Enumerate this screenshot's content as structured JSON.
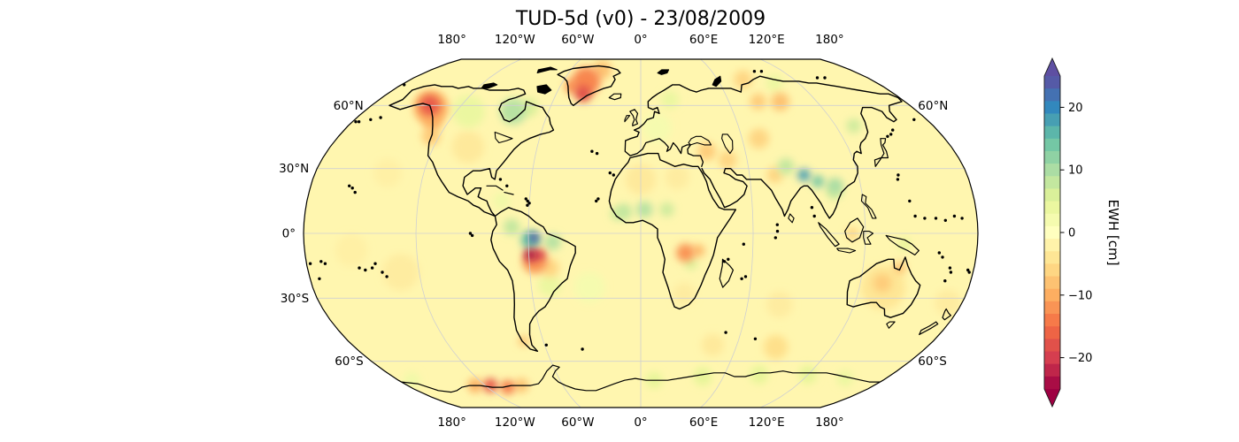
{
  "title": "TUD-5d (v0) - 23/08/2009",
  "axes": {
    "top_labels": [
      "180°",
      "120°W",
      "60°W",
      "0°",
      "60°E",
      "120°E",
      "180°"
    ],
    "bottom_labels": [
      "180°",
      "120°W",
      "60°W",
      "0°",
      "60°E",
      "120°E",
      "180°"
    ],
    "left_labels": [
      "60°N",
      "30°N",
      "0°",
      "30°S",
      "60°S"
    ],
    "right_labels": [
      "60°N",
      "60°S"
    ]
  },
  "colorbar": {
    "label": "EWH [cm]",
    "ticks": [
      {
        "label": "20",
        "value": 20
      },
      {
        "label": "10",
        "value": 10
      },
      {
        "label": "0",
        "value": 0
      },
      {
        "label": "−10",
        "value": -10
      },
      {
        "label": "−20",
        "value": -20
      }
    ],
    "vmin": -25,
    "vmax": 25,
    "n_segments": 25,
    "extend": "both",
    "colormap": {
      "name": "Spectral",
      "values": [
        -25,
        -20,
        -15,
        -10,
        -5,
        0,
        5,
        10,
        15,
        20,
        25
      ],
      "colors": [
        "#9e0142",
        "#d53e4f",
        "#f46d43",
        "#fdae61",
        "#fee08b",
        "#ffffbf",
        "#e6f598",
        "#abdda4",
        "#66c2a5",
        "#3288bd",
        "#5e4fa2"
      ]
    }
  },
  "chart_data": {
    "type": "heatmap",
    "title": "TUD-5d (v0) - 23/08/2009",
    "projection": "Robinson",
    "value_label": "EWH [cm]",
    "units": "cm",
    "vmin": -25,
    "vmax": 25,
    "background_value": -1.5,
    "graticule": {
      "lat_step": 30,
      "lon_step": 60
    },
    "anomalies": [
      {
        "region": "gulf-of-alaska-core",
        "lon": -141,
        "lat": 60,
        "value": -17,
        "r": 10
      },
      {
        "region": "gulf-of-alaska-halo",
        "lon": -139,
        "lat": 59,
        "value": -10,
        "r": 17
      },
      {
        "region": "british-columbia-coast",
        "lon": -130,
        "lat": 52,
        "value": -9,
        "r": 9
      },
      {
        "region": "pacific-northwest",
        "lon": -125,
        "lat": 45,
        "value": -7,
        "r": 9
      },
      {
        "region": "us-interior",
        "lon": -100,
        "lat": 40,
        "value": -3.5,
        "r": 16
      },
      {
        "region": "canada-interior",
        "lon": -112,
        "lat": 57,
        "value": 4,
        "r": 16
      },
      {
        "region": "hudson-bay",
        "lon": -83,
        "lat": 57,
        "value": 9,
        "r": 13
      },
      {
        "region": "hudson-bay-east",
        "lon": -74,
        "lat": 59,
        "value": 6,
        "r": 9
      },
      {
        "region": "greenland-interior",
        "lon": -42,
        "lat": 73,
        "value": -13,
        "r": 14
      },
      {
        "region": "greenland-southeast",
        "lon": -41,
        "lat": 66,
        "value": -18,
        "r": 8
      },
      {
        "region": "greenland-west",
        "lon": -51,
        "lat": 70,
        "value": -12,
        "r": 7
      },
      {
        "region": "greenland-north",
        "lon": -33,
        "lat": 80,
        "value": -8,
        "r": 9
      },
      {
        "region": "amazon-north-core",
        "lon": -57,
        "lat": -2,
        "value": 24,
        "r": 5
      },
      {
        "region": "amazon-north",
        "lon": -59,
        "lat": -3,
        "value": 15,
        "r": 9
      },
      {
        "region": "amazon-northeast-tail",
        "lon": -47,
        "lat": -4,
        "value": 9,
        "r": 8
      },
      {
        "region": "colombia-orinoco",
        "lon": -69,
        "lat": 3,
        "value": 8,
        "r": 8
      },
      {
        "region": "amazon-south-core",
        "lon": -59,
        "lat": -10,
        "value": -24,
        "r": 6
      },
      {
        "region": "amazon-south-core2",
        "lon": -54,
        "lat": -10,
        "value": -20,
        "r": 5
      },
      {
        "region": "amazon-south-halo",
        "lon": -57,
        "lat": -13,
        "value": -12,
        "r": 12
      },
      {
        "region": "brazil-cerrado",
        "lon": -49,
        "lat": -16,
        "value": -6,
        "r": 9
      },
      {
        "region": "southeast-brazil",
        "lon": -50,
        "lat": -24,
        "value": 4,
        "r": 11
      },
      {
        "region": "patagonia-icefields",
        "lon": -72,
        "lat": -50,
        "value": -8,
        "r": 5
      },
      {
        "region": "caribbean",
        "lon": -75,
        "lat": 15,
        "value": 3,
        "r": 8
      },
      {
        "region": "sahel-west",
        "lon": -9,
        "lat": 10,
        "value": 8,
        "r": 8
      },
      {
        "region": "sahel-central",
        "lon": 2,
        "lat": 11,
        "value": 9,
        "r": 8
      },
      {
        "region": "sahel-east",
        "lon": 14,
        "lat": 11,
        "value": 7,
        "r": 7
      },
      {
        "region": "guinea-coast",
        "lon": -13,
        "lat": 9,
        "value": 7,
        "r": 6
      },
      {
        "region": "sahara",
        "lon": 0,
        "lat": 25,
        "value": -3.5,
        "r": 15
      },
      {
        "region": "libya-egypt",
        "lon": 20,
        "lat": 26,
        "value": -3,
        "r": 12
      },
      {
        "region": "congo-angola",
        "lon": 24,
        "lat": -9,
        "value": -12,
        "r": 9
      },
      {
        "region": "congo-east",
        "lon": 31,
        "lat": -8,
        "value": -9,
        "r": 6
      },
      {
        "region": "zambia",
        "lon": 27,
        "lat": -14,
        "value": 6,
        "r": 6
      },
      {
        "region": "southern-africa",
        "lon": 24,
        "lat": -28,
        "value": -3,
        "r": 11
      },
      {
        "region": "europe",
        "lon": 10,
        "lat": 49,
        "value": 2,
        "r": 14
      },
      {
        "region": "scandinavia",
        "lon": 20,
        "lat": 63,
        "value": 4,
        "r": 9
      },
      {
        "region": "anatolia",
        "lon": 38,
        "lat": 38,
        "value": -7,
        "r": 9
      },
      {
        "region": "iran",
        "lon": 49,
        "lat": 34,
        "value": -6,
        "r": 9
      },
      {
        "region": "kazakhstan",
        "lon": 70,
        "lat": 44,
        "value": -6,
        "r": 10
      },
      {
        "region": "west-siberia",
        "lon": 80,
        "lat": 62,
        "value": -7,
        "r": 8
      },
      {
        "region": "central-siberia",
        "lon": 95,
        "lat": 62,
        "value": -8,
        "r": 9
      },
      {
        "region": "kara-region",
        "lon": 80,
        "lat": 74,
        "value": -6,
        "r": 9
      },
      {
        "region": "taymyr",
        "lon": 102,
        "lat": 72,
        "value": 4,
        "r": 8
      },
      {
        "region": "north-india",
        "lon": 74,
        "lat": 27,
        "value": -6,
        "r": 8
      },
      {
        "region": "himalaya-core",
        "lon": 90,
        "lat": 27,
        "value": 18,
        "r": 6
      },
      {
        "region": "himalaya-east-core",
        "lon": 97,
        "lat": 24,
        "value": 14,
        "r": 6
      },
      {
        "region": "tibet-west",
        "lon": 81,
        "lat": 31,
        "value": 8,
        "r": 8
      },
      {
        "region": "southeast-asia-band",
        "lon": 106,
        "lat": 22,
        "value": 10,
        "r": 8
      },
      {
        "region": "indochina",
        "lon": 105,
        "lat": 19,
        "value": 7,
        "r": 7
      },
      {
        "region": "amur",
        "lon": 131,
        "lat": 50,
        "value": 7,
        "r": 7
      },
      {
        "region": "borneo",
        "lon": 113,
        "lat": 0,
        "value": -6,
        "r": 6
      },
      {
        "region": "new-guinea",
        "lon": 141,
        "lat": -5,
        "value": 5,
        "r": 6
      },
      {
        "region": "australia-wash",
        "lon": 133,
        "lat": -25,
        "value": -4,
        "r": 22
      },
      {
        "region": "carpentaria",
        "lon": 140,
        "lat": -16,
        "value": -8,
        "r": 6
      },
      {
        "region": "central-australia",
        "lon": 132,
        "lat": -23,
        "value": -7,
        "r": 9
      },
      {
        "region": "south-indian-ocean",
        "lon": 85,
        "lat": -53,
        "value": -5,
        "r": 12
      },
      {
        "region": "south-indian-ocean-west",
        "lon": 45,
        "lat": -52,
        "value": -3.5,
        "r": 11
      },
      {
        "region": "west-antarctica-1",
        "lon": -128,
        "lat": -73,
        "value": -10,
        "r": 7
      },
      {
        "region": "west-antarctica-core",
        "lon": -116,
        "lat": -73,
        "value": -17,
        "r": 7
      },
      {
        "region": "west-antarctica-2",
        "lon": -104,
        "lat": -74,
        "value": -14,
        "r": 7
      },
      {
        "region": "west-antarctica-3",
        "lon": -92,
        "lat": -73,
        "value": -8,
        "r": 7
      },
      {
        "region": "ross-sea",
        "lon": -170,
        "lat": -70,
        "value": 3,
        "r": 8
      },
      {
        "region": "dronning-maud",
        "lon": 10,
        "lat": -70,
        "value": 5,
        "r": 8
      },
      {
        "region": "enderby",
        "lon": 45,
        "lat": -68,
        "value": 5,
        "r": 9
      },
      {
        "region": "wilkes-west",
        "lon": 85,
        "lat": -67,
        "value": 5,
        "r": 9
      },
      {
        "region": "wilkes",
        "lon": 120,
        "lat": -67,
        "value": 5,
        "r": 9
      },
      {
        "region": "victoria-land",
        "lon": 150,
        "lat": -69,
        "value": 4,
        "r": 8
      },
      {
        "region": "south-pacific",
        "lon": -130,
        "lat": -18,
        "value": -3,
        "r": 18
      },
      {
        "region": "central-pacific",
        "lon": -155,
        "lat": -8,
        "value": -2.5,
        "r": 16
      },
      {
        "region": "north-pacific",
        "lon": -140,
        "lat": 28,
        "value": -2.5,
        "r": 14
      },
      {
        "region": "tasman-sea",
        "lon": 172,
        "lat": -32,
        "value": -3,
        "r": 13
      },
      {
        "region": "south-atlantic",
        "lon": -28,
        "lat": -25,
        "value": 2,
        "r": 15
      },
      {
        "region": "indian-ocean",
        "lon": 78,
        "lat": -33,
        "value": -3,
        "r": 13
      }
    ]
  }
}
